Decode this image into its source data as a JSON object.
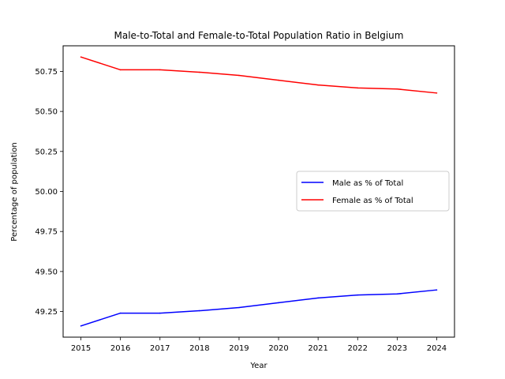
{
  "chart_data": {
    "type": "line",
    "title": "Male-to-Total and Female-to-Total Population Ratio in Belgium",
    "xlabel": "Year",
    "ylabel": "Percentage of population",
    "x": [
      2015,
      2016,
      2017,
      2018,
      2019,
      2020,
      2021,
      2022,
      2023,
      2024
    ],
    "x_ticks": [
      "2015",
      "2016",
      "2017",
      "2018",
      "2019",
      "2020",
      "2021",
      "2022",
      "2023",
      "2024"
    ],
    "y_ticks": [
      "49.25",
      "49.50",
      "49.75",
      "50.00",
      "50.25",
      "50.50",
      "50.75"
    ],
    "y_tick_values": [
      49.25,
      49.5,
      49.75,
      50.0,
      50.25,
      50.5,
      50.75
    ],
    "xlim": [
      2014.55,
      2024.45
    ],
    "ylim": [
      49.09,
      50.91
    ],
    "grid": false,
    "legend_position": "center-right",
    "series": [
      {
        "name": "Male as % of Total",
        "color": "#0000ff",
        "values": [
          49.16,
          49.24,
          49.24,
          49.255,
          49.275,
          49.305,
          49.335,
          49.353,
          49.36,
          49.385
        ]
      },
      {
        "name": "Female as % of Total",
        "color": "#ff0000",
        "values": [
          50.84,
          50.76,
          50.76,
          50.745,
          50.725,
          50.695,
          50.665,
          50.647,
          50.64,
          50.615
        ]
      }
    ]
  }
}
